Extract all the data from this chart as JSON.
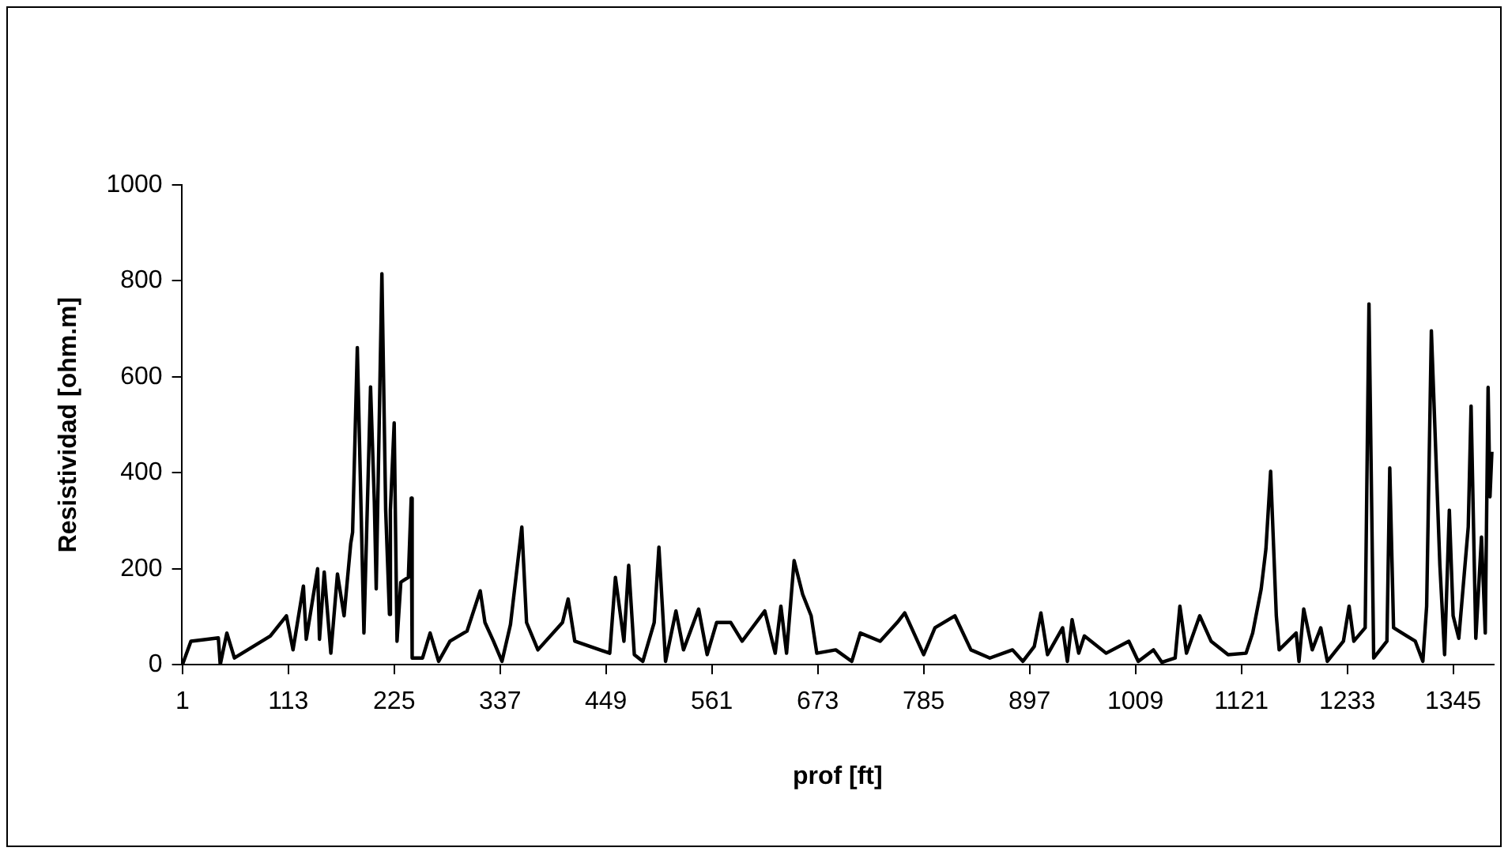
{
  "chart_data": {
    "type": "line",
    "xlabel": "prof [ft]",
    "ylabel": "Resistividad [ohm.m]",
    "xlim": [
      0,
      1388
    ],
    "xticks": [
      1,
      113,
      225,
      337,
      449,
      561,
      673,
      785,
      897,
      1009,
      1121,
      1233,
      1345
    ],
    "ylim": [
      0,
      1000
    ],
    "yticks": [
      0,
      200,
      400,
      600,
      800,
      1000
    ],
    "legend": false,
    "marker": "none",
    "line_style": "solid",
    "series": [
      {
        "color": "#000000",
        "x": [
          1,
          10,
          39,
          41,
          48,
          56,
          94,
          111,
          118,
          129,
          132,
          144,
          146,
          151,
          158,
          165,
          172,
          179,
          181,
          186,
          193,
          200,
          204,
          206,
          212,
          216,
          220,
          221,
          225,
          228,
          232,
          240,
          243,
          244,
          255,
          263,
          272,
          284,
          302,
          316,
          321,
          330,
          339,
          348,
          360,
          365,
          377,
          403,
          409,
          416,
          453,
          459,
          468,
          473,
          479,
          488,
          500,
          505,
          512,
          523,
          531,
          547,
          556,
          566,
          581,
          593,
          617,
          628,
          634,
          640,
          648,
          657,
          666,
          672,
          692,
          709,
          718,
          739,
          757,
          765,
          785,
          797,
          818,
          835,
          855,
          879,
          890,
          902,
          909,
          916,
          932,
          937,
          942,
          949,
          955,
          978,
          1002,
          1012,
          1028,
          1037,
          1051,
          1056,
          1063,
          1077,
          1089,
          1107,
          1126,
          1133,
          1142,
          1147,
          1152,
          1158,
          1161,
          1179,
          1182,
          1187,
          1196,
          1205,
          1212,
          1229,
          1235,
          1240,
          1252,
          1256,
          1261,
          1275,
          1278,
          1282,
          1305,
          1313,
          1317,
          1322,
          1331,
          1336,
          1341,
          1345,
          1351,
          1361,
          1364,
          1369,
          1375,
          1379,
          1382,
          1384,
          1386
        ],
        "values": [
          0,
          49,
          56,
          0,
          66,
          14,
          60,
          102,
          31,
          164,
          53,
          200,
          53,
          193,
          24,
          189,
          102,
          252,
          276,
          661,
          66,
          579,
          340,
          158,
          815,
          322,
          105,
          322,
          504,
          49,
          172,
          182,
          347,
          14,
          14,
          66,
          7,
          49,
          70,
          154,
          88,
          49,
          7,
          84,
          287,
          88,
          31,
          88,
          137,
          49,
          24,
          182,
          49,
          207,
          21,
          7,
          88,
          245,
          7,
          112,
          31,
          116,
          21,
          88,
          88,
          49,
          112,
          24,
          122,
          24,
          217,
          147,
          102,
          24,
          31,
          7,
          66,
          49,
          88,
          108,
          21,
          77,
          102,
          31,
          14,
          31,
          7,
          38,
          108,
          21,
          77,
          7,
          94,
          24,
          60,
          24,
          49,
          7,
          31,
          5,
          14,
          122,
          24,
          102,
          49,
          21,
          24,
          66,
          158,
          241,
          403,
          102,
          31,
          66,
          7,
          116,
          31,
          77,
          7,
          49,
          122,
          49,
          77,
          752,
          14,
          49,
          410,
          77,
          49,
          7,
          122,
          696,
          207,
          21,
          322,
          102,
          55,
          287,
          539,
          55,
          266,
          66,
          578,
          350,
          444
        ]
      }
    ]
  }
}
